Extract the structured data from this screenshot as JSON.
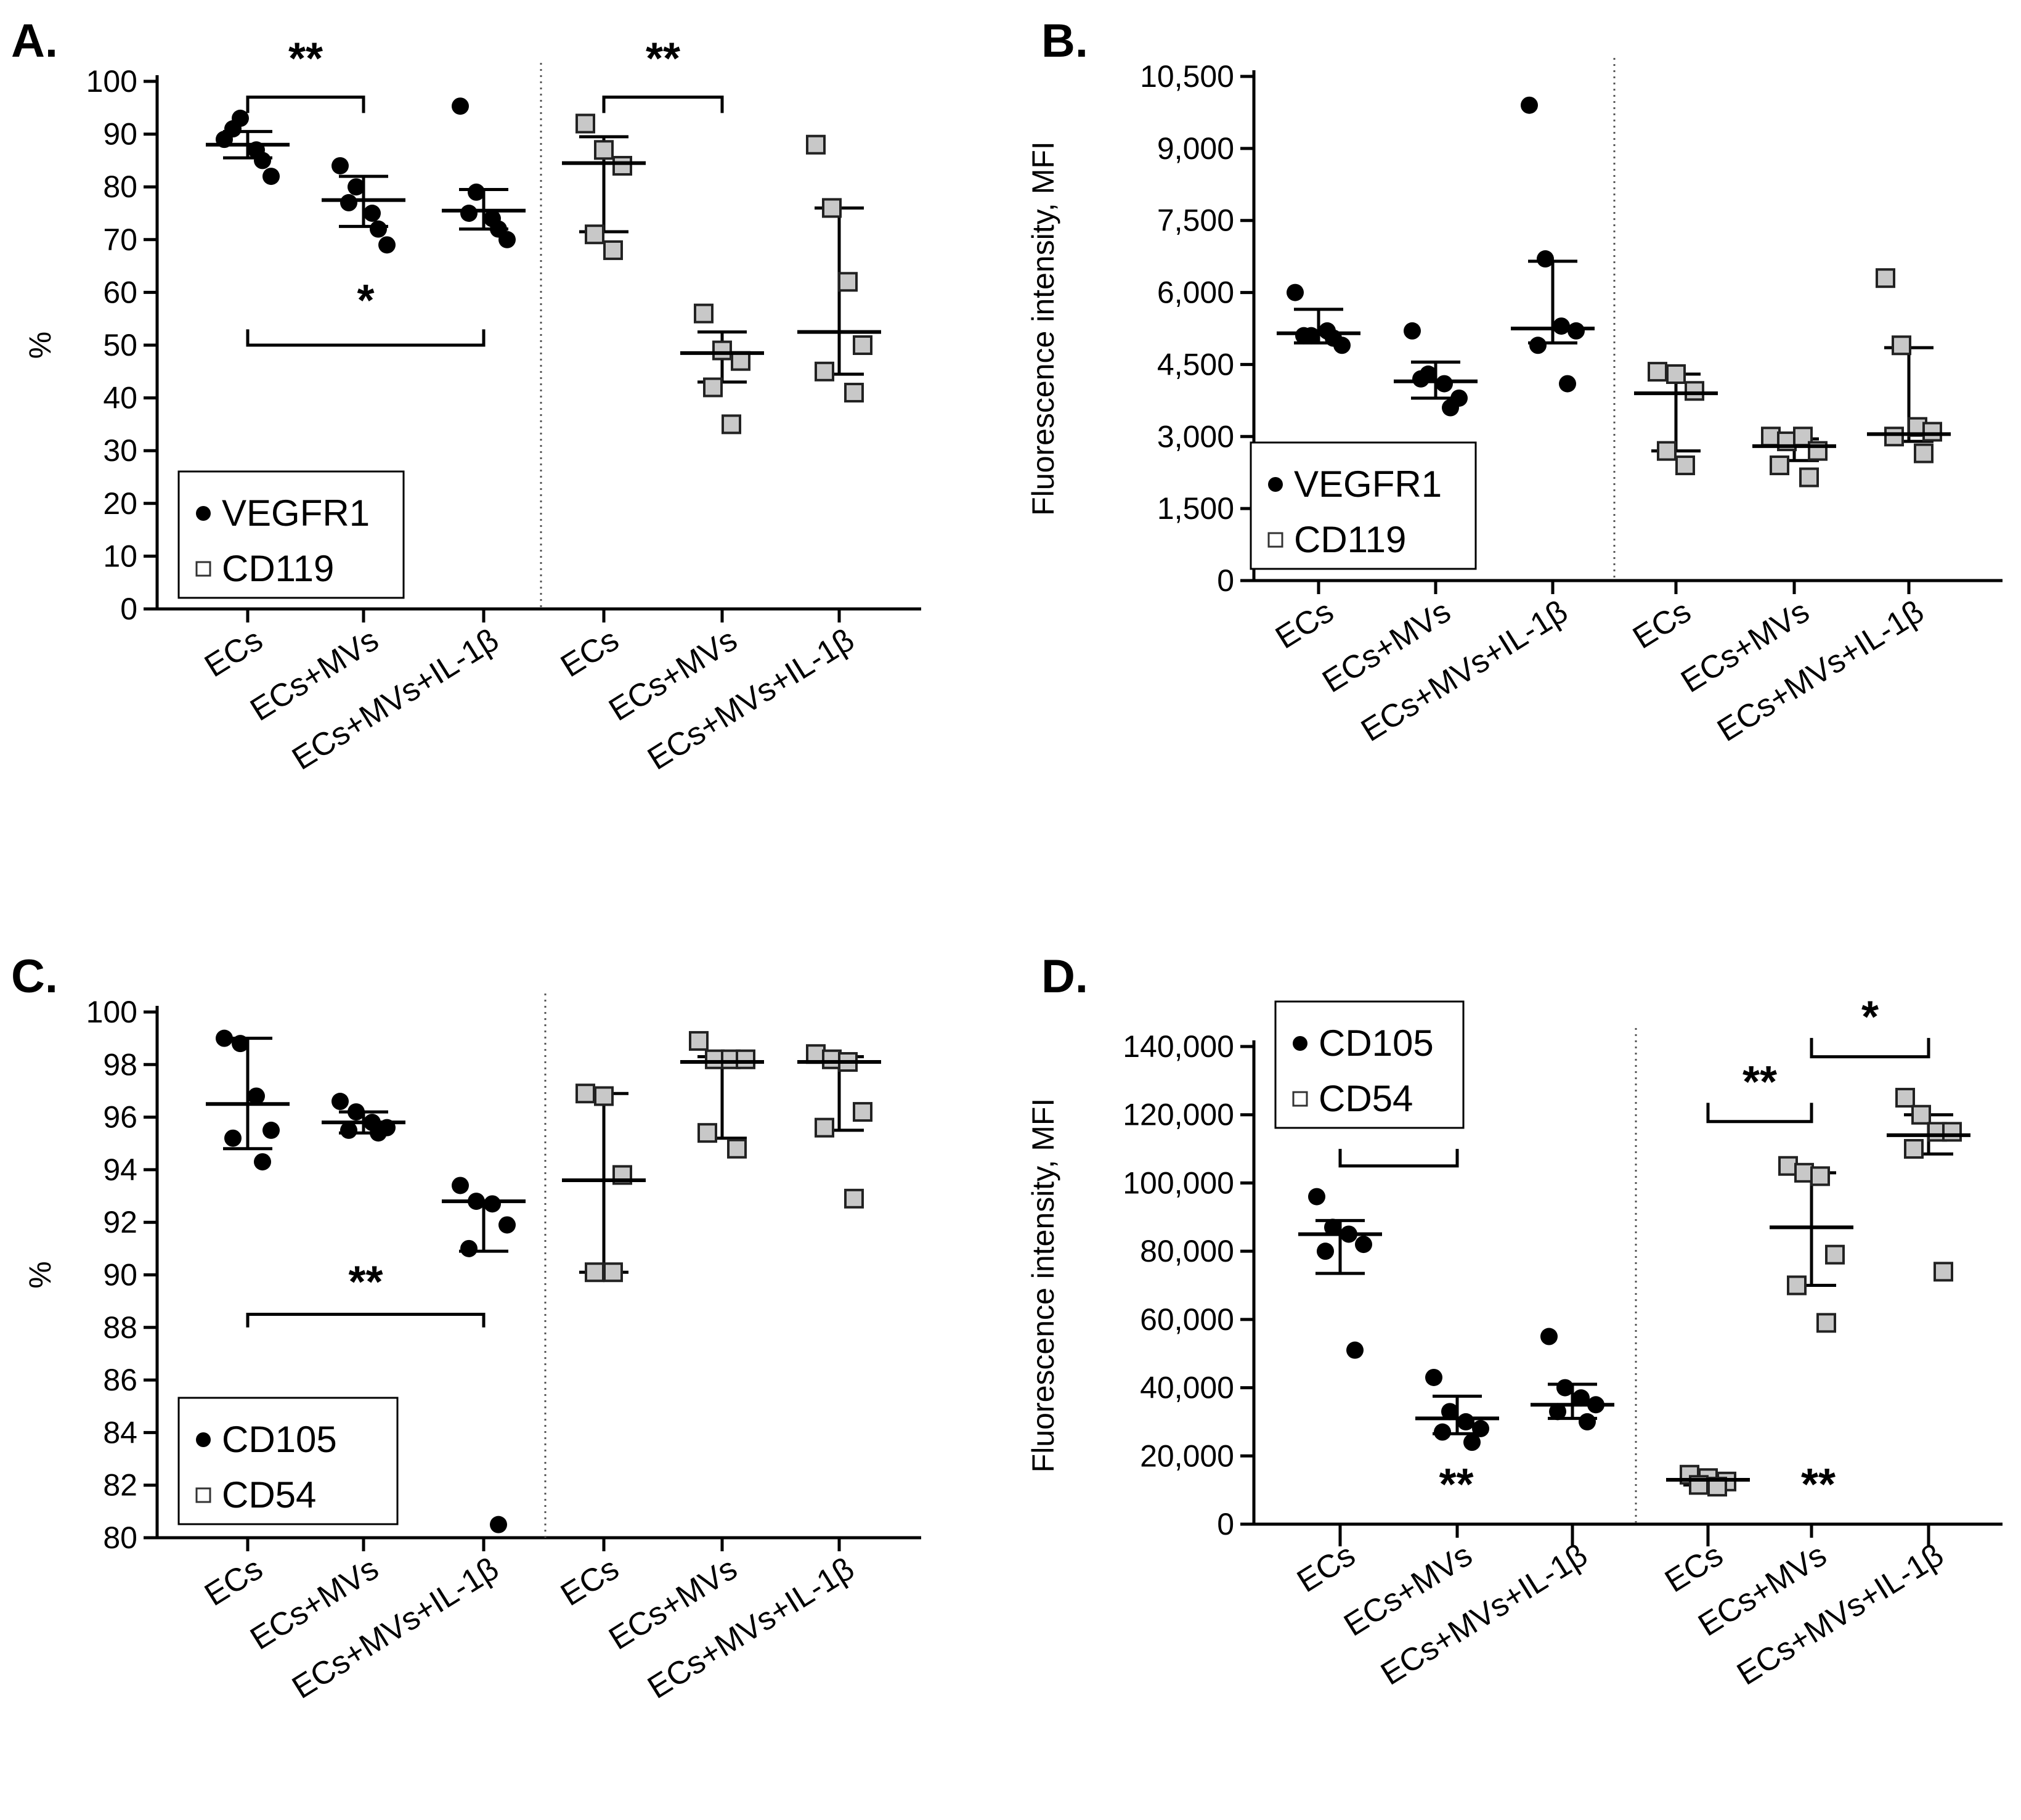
{
  "chart_data": [
    {
      "panel": "A.",
      "type": "scatter",
      "ylabel": "%",
      "ylim": [
        0,
        100
      ],
      "yticks": [
        "0",
        "10",
        "20",
        "30",
        "40",
        "50",
        "60",
        "70",
        "80",
        "90",
        "100"
      ],
      "categories": [
        "ECs",
        "ECs+MVs",
        "ECs+MVs+IL-1β",
        "ECs",
        "ECs+MVs",
        "ECs+MVs+IL-1β"
      ],
      "legend": {
        "position": "bottom-left",
        "entries": [
          "VEGFR1",
          "CD119"
        ]
      },
      "series": [
        {
          "name": "VEGFR1",
          "marker": "circle",
          "color": "#000000",
          "points": [
            [
              89,
              93,
              87,
              82,
              91,
              85
            ],
            [
              84,
              80,
              75,
              69,
              77,
              72
            ],
            [
              95.3,
              79,
              74,
              70,
              75,
              72
            ]
          ],
          "median": [
            88,
            77.5,
            75.5
          ],
          "iqr": [
            [
              85.5,
              90.5
            ],
            [
              72.5,
              82
            ],
            [
              72,
              79.5
            ]
          ]
        },
        {
          "name": "CD119",
          "marker": "square",
          "color": "#c8c8c8",
          "points": [
            [
              92,
              87,
              84,
              71,
              68
            ],
            [
              56,
              49,
              47,
              42,
              35
            ],
            [
              88,
              76,
              62,
              50,
              45,
              41
            ]
          ],
          "median": [
            84.5,
            48.5,
            52.5
          ],
          "iqr": [
            [
              71.5,
              89.5
            ],
            [
              43,
              52.5
            ],
            [
              44.5,
              76
            ]
          ]
        }
      ],
      "significance": [
        {
          "between": [
            "ECs",
            "ECs+MVs"
          ],
          "label": "**"
        },
        {
          "between": [
            "ECs",
            "ECs+MVs+IL-1β"
          ],
          "label": "*"
        },
        {
          "between": [
            "ECs",
            "ECs+MVs"
          ],
          "label": "**"
        }
      ]
    },
    {
      "panel": "B.",
      "type": "scatter",
      "ylabel": "Fluorescence intensity, MFI",
      "ylim": [
        0,
        10500
      ],
      "yticks": [
        "0",
        "1,500",
        "3,000",
        "4,500",
        "6,000",
        "7,500",
        "9,000",
        "10,500"
      ],
      "categories": [
        "ECs",
        "ECs+MVs",
        "ECs+MVs+IL-1β",
        "ECs",
        "ECs+MVs",
        "ECs+MVs+IL-1β"
      ],
      "legend": {
        "position": "bottom-left",
        "entries": [
          "VEGFR1",
          "CD119"
        ]
      },
      "series": [
        {
          "name": "VEGFR1",
          "marker": "circle",
          "color": "#000000",
          "points": [
            [
              6000,
              5100,
              5200,
              4900,
              5100,
              5050
            ],
            [
              5200,
              4300,
              4100,
              3800,
              4200,
              3600
            ],
            [
              9900,
              6700,
              5300,
              5200,
              4900,
              4100
            ]
          ],
          "median": [
            5150,
            4150,
            5250
          ],
          "iqr": [
            [
              4950,
              5650
            ],
            [
              3800,
              4550
            ],
            [
              4950,
              6650
            ]
          ]
        },
        {
          "name": "CD119",
          "marker": "square",
          "color": "#c8c8c8",
          "points": [
            [
              4350,
              4300,
              3950,
              2700,
              2400
            ],
            [
              3000,
              2900,
              3000,
              2700,
              2400,
              2150
            ],
            [
              6300,
              4900,
              3200,
              3100,
              3000,
              2650
            ]
          ],
          "median": [
            3900,
            2800,
            3050
          ],
          "iqr": [
            [
              2700,
              4300
            ],
            [
              2500,
              2950
            ],
            [
              2900,
              4850
            ]
          ]
        }
      ],
      "significance": []
    },
    {
      "panel": "C.",
      "type": "scatter",
      "ylabel": "%",
      "ylim": [
        80,
        100
      ],
      "yticks": [
        "80",
        "82",
        "84",
        "86",
        "88",
        "90",
        "92",
        "94",
        "96",
        "98",
        "100"
      ],
      "categories": [
        "ECs",
        "ECs+MVs",
        "ECs+MVs+IL-1β",
        "ECs",
        "ECs+MVs",
        "ECs+MVs+IL-1β"
      ],
      "legend": {
        "position": "bottom-left",
        "entries": [
          "CD105",
          "CD54"
        ]
      },
      "series": [
        {
          "name": "CD105",
          "marker": "circle",
          "color": "#000000",
          "points": [
            [
              99,
              98.8,
              96.8,
              95.5,
              95.2,
              94.3
            ],
            [
              96.6,
              96.2,
              95.8,
              95.6,
              95.5,
              95.4
            ],
            [
              93.4,
              92.8,
              92.7,
              91.9,
              91,
              80.5
            ]
          ],
          "median": [
            96.5,
            95.8,
            92.8
          ],
          "iqr": [
            [
              94.8,
              99
            ],
            [
              95.4,
              96.2
            ],
            [
              90.9,
              92.8
            ]
          ]
        },
        {
          "name": "CD54",
          "marker": "square",
          "color": "#c8c8c8",
          "points": [
            [
              96.9,
              96.8,
              93.8,
              90.1,
              90.1
            ],
            [
              98.9,
              98.2,
              98.2,
              98.2,
              95.4,
              94.8
            ],
            [
              98.4,
              98.2,
              98.1,
              96.2,
              95.6,
              92.9
            ]
          ],
          "median": [
            93.6,
            98.1,
            98.1
          ],
          "iqr": [
            [
              90.1,
              96.9
            ],
            [
              95.2,
              98.3
            ],
            [
              95.5,
              98.3
            ]
          ]
        }
      ],
      "significance": [
        {
          "between": [
            "ECs",
            "ECs+MVs+IL-1β"
          ],
          "label": "**"
        }
      ]
    },
    {
      "panel": "D.",
      "type": "scatter",
      "ylabel": "Fluorescence intensity, MFI",
      "ylim": [
        0,
        140000
      ],
      "yticks": [
        "0",
        "20,000",
        "40,000",
        "60,000",
        "80,000",
        "100,000",
        "120,000",
        "140,000"
      ],
      "categories": [
        "ECs",
        "ECs+MVs",
        "ECs+MVs+IL-1β",
        "ECs",
        "ECs+MVs",
        "ECs+MVs+IL-1β"
      ],
      "legend": {
        "position": "top-left",
        "entries": [
          "CD105",
          "CD54"
        ]
      },
      "series": [
        {
          "name": "CD105",
          "marker": "circle",
          "color": "#000000",
          "points": [
            [
              96000,
              87000,
              85000,
              82000,
              80000,
              51000
            ],
            [
              43000,
              33000,
              30000,
              28000,
              27000,
              24000
            ],
            [
              55000,
              40000,
              37000,
              35000,
              33000,
              30000
            ]
          ],
          "median": [
            85000,
            31000,
            35000
          ],
          "iqr": [
            [
              73500,
              89000
            ],
            [
              26500,
              37500
            ],
            [
              31000,
              41000
            ]
          ]
        },
        {
          "name": "CD54",
          "marker": "square",
          "color": "#c8c8c8",
          "points": [
            [
              14500,
              13500,
              12500,
              11500,
              11000
            ],
            [
              105000,
              103000,
              102000,
              79000,
              70000,
              59000
            ],
            [
              125000,
              120000,
              115000,
              115000,
              110000,
              74000
            ]
          ],
          "median": [
            13000,
            87000,
            114000
          ],
          "iqr": [
            [
              11500,
              14000
            ],
            [
              70000,
              103000
            ],
            [
              108500,
              120000
            ]
          ]
        }
      ],
      "significance": [
        {
          "between": [
            "ECs",
            "ECs+MVs"
          ],
          "label": "**"
        },
        {
          "between": [
            "ECs",
            "ECs+MVs+IL-1β"
          ],
          "label": "**"
        },
        {
          "between": [
            "ECs",
            "ECs+MVs"
          ],
          "label": "**"
        },
        {
          "between": [
            "ECs+MVs",
            "ECs+MVs+IL-1β"
          ],
          "label": "*"
        },
        {
          "between": [
            "ECs",
            "ECs+MVs+IL-1β"
          ],
          "label": "**"
        }
      ]
    }
  ]
}
